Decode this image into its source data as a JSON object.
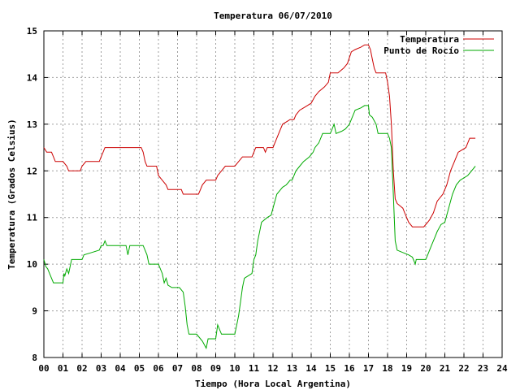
{
  "chart_data": {
    "type": "line",
    "title": "Temperatura 06/07/2010",
    "xlabel": "Tiempo (Hora Local Argentina)",
    "ylabel": "Temperatura (Grados Celsius)",
    "xlim": [
      0,
      24
    ],
    "ylim": [
      8,
      15
    ],
    "grid": true,
    "legend_position": "top-right",
    "x_tick_labels": [
      "00",
      "01",
      "02",
      "03",
      "04",
      "05",
      "06",
      "07",
      "08",
      "09",
      "10",
      "11",
      "12",
      "13",
      "14",
      "15",
      "16",
      "17",
      "18",
      "19",
      "20",
      "21",
      "22",
      "23",
      "24"
    ],
    "y_ticks": [
      8,
      9,
      10,
      11,
      12,
      13,
      14,
      15
    ],
    "series": [
      {
        "name": "Temperatura",
        "color": "#cc0000",
        "points": [
          [
            0.0,
            12.5
          ],
          [
            0.15,
            12.4
          ],
          [
            0.4,
            12.4
          ],
          [
            0.5,
            12.3
          ],
          [
            0.6,
            12.2
          ],
          [
            1.0,
            12.2
          ],
          [
            1.2,
            12.1
          ],
          [
            1.3,
            12.0
          ],
          [
            1.9,
            12.0
          ],
          [
            2.0,
            12.1
          ],
          [
            2.2,
            12.2
          ],
          [
            2.9,
            12.2
          ],
          [
            3.0,
            12.3
          ],
          [
            3.1,
            12.4
          ],
          [
            3.2,
            12.5
          ],
          [
            5.1,
            12.5
          ],
          [
            5.2,
            12.4
          ],
          [
            5.3,
            12.2
          ],
          [
            5.4,
            12.1
          ],
          [
            5.9,
            12.1
          ],
          [
            6.0,
            11.9
          ],
          [
            6.2,
            11.8
          ],
          [
            6.4,
            11.7
          ],
          [
            6.5,
            11.6
          ],
          [
            7.2,
            11.6
          ],
          [
            7.3,
            11.5
          ],
          [
            8.1,
            11.5
          ],
          [
            8.2,
            11.6
          ],
          [
            8.3,
            11.7
          ],
          [
            8.5,
            11.8
          ],
          [
            9.0,
            11.8
          ],
          [
            9.1,
            11.9
          ],
          [
            9.3,
            12.0
          ],
          [
            9.5,
            12.1
          ],
          [
            10.0,
            12.1
          ],
          [
            10.2,
            12.2
          ],
          [
            10.4,
            12.3
          ],
          [
            10.9,
            12.3
          ],
          [
            11.0,
            12.4
          ],
          [
            11.1,
            12.5
          ],
          [
            11.5,
            12.5
          ],
          [
            11.6,
            12.4
          ],
          [
            11.7,
            12.5
          ],
          [
            12.0,
            12.5
          ],
          [
            12.2,
            12.7
          ],
          [
            12.4,
            12.9
          ],
          [
            12.5,
            13.0
          ],
          [
            12.9,
            13.1
          ],
          [
            13.1,
            13.1
          ],
          [
            13.2,
            13.2
          ],
          [
            13.4,
            13.3
          ],
          [
            13.6,
            13.35
          ],
          [
            13.8,
            13.4
          ],
          [
            14.0,
            13.45
          ],
          [
            14.2,
            13.6
          ],
          [
            14.4,
            13.7
          ],
          [
            14.7,
            13.8
          ],
          [
            14.9,
            13.9
          ],
          [
            15.0,
            14.1
          ],
          [
            15.4,
            14.1
          ],
          [
            15.7,
            14.2
          ],
          [
            15.9,
            14.3
          ],
          [
            16.1,
            14.55
          ],
          [
            16.3,
            14.6
          ],
          [
            16.6,
            14.65
          ],
          [
            16.8,
            14.7
          ],
          [
            17.0,
            14.7
          ],
          [
            17.1,
            14.6
          ],
          [
            17.2,
            14.4
          ],
          [
            17.3,
            14.2
          ],
          [
            17.4,
            14.1
          ],
          [
            17.9,
            14.1
          ],
          [
            18.0,
            13.9
          ],
          [
            18.1,
            13.6
          ],
          [
            18.2,
            13.0
          ],
          [
            18.3,
            12.0
          ],
          [
            18.4,
            11.4
          ],
          [
            18.5,
            11.3
          ],
          [
            18.8,
            11.2
          ],
          [
            18.9,
            11.1
          ],
          [
            19.1,
            10.9
          ],
          [
            19.3,
            10.8
          ],
          [
            19.9,
            10.8
          ],
          [
            20.1,
            10.9
          ],
          [
            20.2,
            10.95
          ],
          [
            20.4,
            11.1
          ],
          [
            20.6,
            11.35
          ],
          [
            20.9,
            11.5
          ],
          [
            21.1,
            11.7
          ],
          [
            21.3,
            12.0
          ],
          [
            21.5,
            12.2
          ],
          [
            21.7,
            12.4
          ],
          [
            22.1,
            12.5
          ],
          [
            22.3,
            12.7
          ],
          [
            22.6,
            12.7
          ]
        ]
      },
      {
        "name": "Punto de Rocío",
        "color": "#00aa00",
        "points": [
          [
            0.0,
            10.1
          ],
          [
            0.1,
            9.95
          ],
          [
            0.2,
            9.9
          ],
          [
            0.3,
            9.8
          ],
          [
            0.4,
            9.7
          ],
          [
            0.5,
            9.6
          ],
          [
            1.0,
            9.6
          ],
          [
            1.05,
            9.8
          ],
          [
            1.1,
            9.75
          ],
          [
            1.2,
            9.9
          ],
          [
            1.3,
            9.8
          ],
          [
            1.45,
            10.1
          ],
          [
            2.0,
            10.1
          ],
          [
            2.1,
            10.2
          ],
          [
            2.5,
            10.25
          ],
          [
            2.9,
            10.3
          ],
          [
            3.0,
            10.4
          ],
          [
            3.1,
            10.4
          ],
          [
            3.2,
            10.5
          ],
          [
            3.3,
            10.4
          ],
          [
            4.3,
            10.4
          ],
          [
            4.4,
            10.2
          ],
          [
            4.5,
            10.4
          ],
          [
            5.2,
            10.4
          ],
          [
            5.4,
            10.2
          ],
          [
            5.5,
            10.0
          ],
          [
            6.0,
            10.0
          ],
          [
            6.2,
            9.8
          ],
          [
            6.3,
            9.6
          ],
          [
            6.4,
            9.7
          ],
          [
            6.5,
            9.55
          ],
          [
            6.7,
            9.5
          ],
          [
            7.1,
            9.5
          ],
          [
            7.3,
            9.4
          ],
          [
            7.4,
            9.1
          ],
          [
            7.5,
            8.7
          ],
          [
            7.6,
            8.5
          ],
          [
            8.0,
            8.5
          ],
          [
            8.2,
            8.4
          ],
          [
            8.3,
            8.35
          ],
          [
            8.5,
            8.2
          ],
          [
            8.6,
            8.4
          ],
          [
            9.0,
            8.4
          ],
          [
            9.1,
            8.7
          ],
          [
            9.2,
            8.6
          ],
          [
            9.3,
            8.5
          ],
          [
            10.0,
            8.5
          ],
          [
            10.1,
            8.7
          ],
          [
            10.2,
            8.9
          ],
          [
            10.3,
            9.2
          ],
          [
            10.4,
            9.5
          ],
          [
            10.5,
            9.7
          ],
          [
            10.9,
            9.8
          ],
          [
            11.0,
            10.1
          ],
          [
            11.1,
            10.2
          ],
          [
            11.2,
            10.5
          ],
          [
            11.3,
            10.7
          ],
          [
            11.4,
            10.9
          ],
          [
            11.7,
            11.0
          ],
          [
            11.9,
            11.05
          ],
          [
            12.0,
            11.2
          ],
          [
            12.2,
            11.5
          ],
          [
            12.4,
            11.6
          ],
          [
            12.5,
            11.65
          ],
          [
            12.7,
            11.7
          ],
          [
            12.9,
            11.8
          ],
          [
            13.0,
            11.8
          ],
          [
            13.2,
            12.0
          ],
          [
            13.4,
            12.1
          ],
          [
            13.6,
            12.2
          ],
          [
            13.9,
            12.3
          ],
          [
            14.1,
            12.4
          ],
          [
            14.2,
            12.5
          ],
          [
            14.4,
            12.6
          ],
          [
            14.6,
            12.8
          ],
          [
            15.0,
            12.8
          ],
          [
            15.2,
            13.0
          ],
          [
            15.3,
            12.8
          ],
          [
            15.6,
            12.85
          ],
          [
            15.8,
            12.9
          ],
          [
            16.0,
            13.0
          ],
          [
            16.1,
            13.1
          ],
          [
            16.3,
            13.3
          ],
          [
            16.6,
            13.35
          ],
          [
            16.8,
            13.4
          ],
          [
            17.0,
            13.4
          ],
          [
            17.05,
            13.2
          ],
          [
            17.2,
            13.15
          ],
          [
            17.4,
            13.0
          ],
          [
            17.5,
            12.8
          ],
          [
            18.0,
            12.8
          ],
          [
            18.1,
            12.7
          ],
          [
            18.2,
            12.5
          ],
          [
            18.3,
            11.5
          ],
          [
            18.4,
            10.5
          ],
          [
            18.5,
            10.3
          ],
          [
            18.8,
            10.25
          ],
          [
            19.1,
            10.2
          ],
          [
            19.3,
            10.15
          ],
          [
            19.45,
            10.0
          ],
          [
            19.5,
            10.1
          ],
          [
            20.0,
            10.1
          ],
          [
            20.1,
            10.2
          ],
          [
            20.3,
            10.4
          ],
          [
            20.5,
            10.6
          ],
          [
            20.6,
            10.7
          ],
          [
            20.8,
            10.85
          ],
          [
            21.0,
            10.9
          ],
          [
            21.2,
            11.2
          ],
          [
            21.4,
            11.5
          ],
          [
            21.6,
            11.7
          ],
          [
            21.8,
            11.8
          ],
          [
            22.2,
            11.9
          ],
          [
            22.4,
            12.0
          ],
          [
            22.6,
            12.1
          ]
        ]
      }
    ]
  }
}
